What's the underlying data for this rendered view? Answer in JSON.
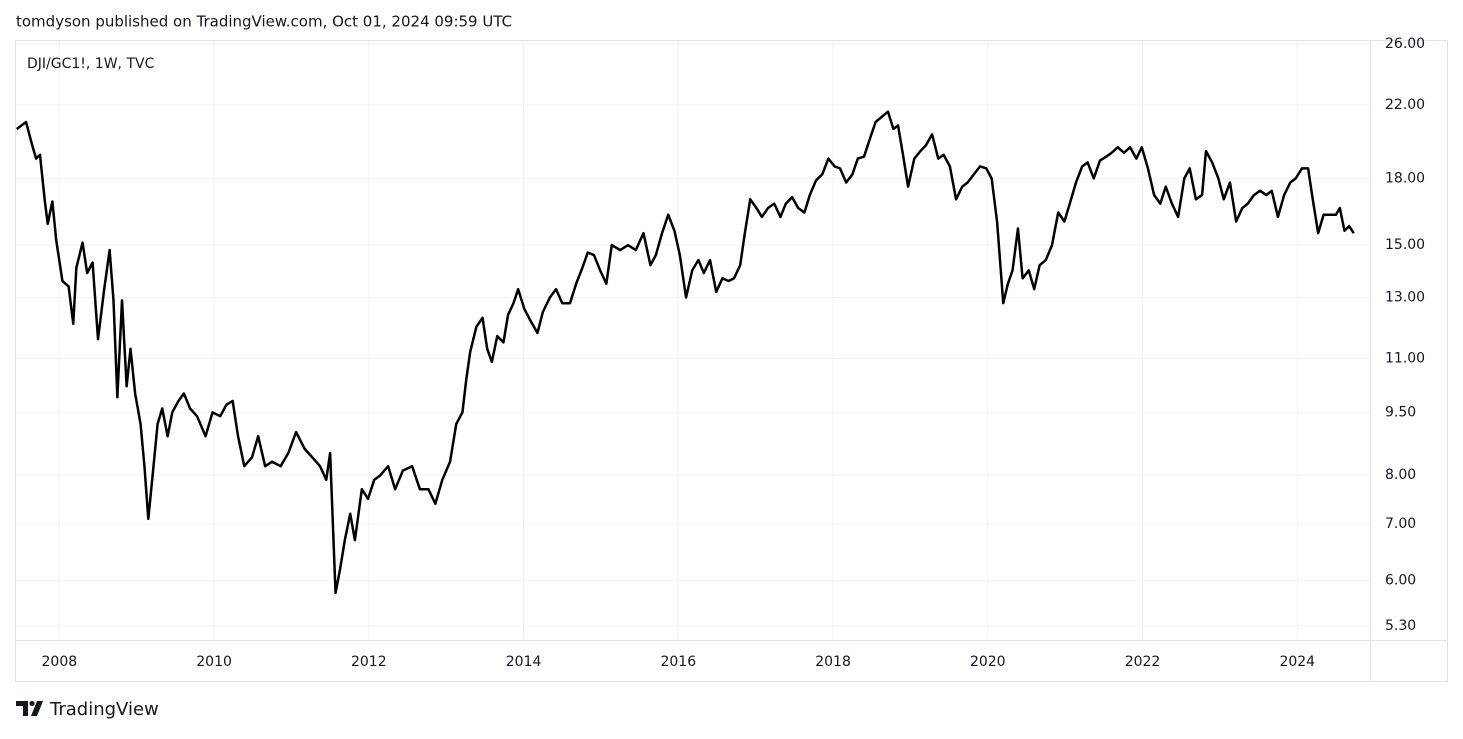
{
  "header": "tomdyson published on TradingView.com, Oct 01, 2024 09:59 UTC",
  "footer": "TradingView",
  "chart_data": {
    "type": "line",
    "title": "DJI/GC1!, 1W, TVC",
    "color": "#000000",
    "log_scale": true,
    "grid": true,
    "xlim": [
      2007.44,
      2024.94
    ],
    "xticks": [
      2008,
      2010,
      2012,
      2014,
      2016,
      2018,
      2020,
      2022,
      2024
    ],
    "ylim": [
      5.1,
      26.2
    ],
    "yticks": [
      {
        "value": 5.3,
        "label": "5.30"
      },
      {
        "value": 6,
        "label": "6.00"
      },
      {
        "value": 7,
        "label": "7.00"
      },
      {
        "value": 8,
        "label": "8.00"
      },
      {
        "value": 9.5,
        "label": "9.50"
      },
      {
        "value": 11,
        "label": "11.00"
      },
      {
        "value": 13,
        "label": "13.00"
      },
      {
        "value": 15,
        "label": "15.00"
      },
      {
        "value": 18,
        "label": "18.00"
      },
      {
        "value": 22,
        "label": "22.00"
      },
      {
        "value": 26,
        "label": "26.00"
      }
    ],
    "x": [
      2007.45,
      2007.57,
      2007.65,
      2007.7,
      2007.75,
      2007.81,
      2007.85,
      2007.91,
      2007.96,
      2008.04,
      2008.12,
      2008.18,
      2008.22,
      2008.3,
      2008.36,
      2008.43,
      2008.5,
      2008.58,
      2008.65,
      2008.7,
      2008.75,
      2008.81,
      2008.87,
      2008.92,
      2008.98,
      2009.05,
      2009.1,
      2009.15,
      2009.2,
      2009.27,
      2009.33,
      2009.4,
      2009.46,
      2009.54,
      2009.61,
      2009.69,
      2009.78,
      2009.89,
      2009.98,
      2010.08,
      2010.16,
      2010.24,
      2010.31,
      2010.39,
      2010.49,
      2010.57,
      2010.66,
      2010.75,
      2010.86,
      2010.96,
      2011.06,
      2011.17,
      2011.27,
      2011.37,
      2011.45,
      2011.5,
      2011.57,
      2011.63,
      2011.69,
      2011.76,
      2011.82,
      2011.91,
      2011.99,
      2012.07,
      2012.15,
      2012.25,
      2012.34,
      2012.44,
      2012.56,
      2012.66,
      2012.77,
      2012.86,
      2012.95,
      2013.05,
      2013.13,
      2013.21,
      2013.26,
      2013.31,
      2013.39,
      2013.47,
      2013.53,
      2013.59,
      2013.66,
      2013.74,
      2013.8,
      2013.87,
      2013.93,
      2014.01,
      2014.09,
      2014.18,
      2014.25,
      2014.34,
      2014.42,
      2014.5,
      2014.6,
      2014.68,
      2014.76,
      2014.83,
      2014.91,
      2014.99,
      2015.07,
      2015.14,
      2015.25,
      2015.35,
      2015.45,
      2015.55,
      2015.64,
      2015.71,
      2015.79,
      2015.87,
      2015.95,
      2016.02,
      2016.1,
      2016.18,
      2016.26,
      2016.33,
      2016.41,
      2016.49,
      2016.57,
      2016.65,
      2016.72,
      2016.8,
      2016.86,
      2016.93,
      2017.01,
      2017.08,
      2017.16,
      2017.24,
      2017.32,
      2017.39,
      2017.47,
      2017.55,
      2017.63,
      2017.7,
      2017.78,
      2017.86,
      2017.94,
      2018.02,
      2018.09,
      2018.17,
      2018.25,
      2018.32,
      2018.4,
      2018.48,
      2018.55,
      2018.63,
      2018.71,
      2018.78,
      2018.84,
      2018.9,
      2018.97,
      2019.05,
      2019.13,
      2019.2,
      2019.28,
      2019.36,
      2019.43,
      2019.51,
      2019.59,
      2019.67,
      2019.74,
      2019.82,
      2019.9,
      2019.98,
      2020.05,
      2020.12,
      2020.2,
      2020.26,
      2020.32,
      2020.39,
      2020.45,
      2020.53,
      2020.6,
      2020.67,
      2020.75,
      2020.83,
      2020.91,
      2020.99,
      2021.06,
      2021.14,
      2021.22,
      2021.29,
      2021.37,
      2021.45,
      2021.53,
      2021.6,
      2021.68,
      2021.76,
      2021.84,
      2021.92,
      2021.99,
      2022.07,
      2022.15,
      2022.23,
      2022.3,
      2022.38,
      2022.46,
      2022.54,
      2022.61,
      2022.69,
      2022.77,
      2022.82,
      2022.9,
      2022.98,
      2023.05,
      2023.13,
      2023.21,
      2023.29,
      2023.36,
      2023.44,
      2023.52,
      2023.6,
      2023.67,
      2023.75,
      2023.83,
      2023.91,
      2023.98,
      2024.06,
      2024.14,
      2024.2,
      2024.27,
      2024.34,
      2024.42,
      2024.5,
      2024.55,
      2024.61,
      2024.67,
      2024.73
    ],
    "values": [
      20.6,
      21.0,
      19.7,
      19.0,
      19.2,
      17.0,
      15.9,
      16.9,
      15.2,
      13.6,
      13.4,
      12.1,
      14.1,
      15.1,
      13.9,
      14.3,
      11.6,
      13.3,
      14.8,
      12.9,
      9.9,
      12.9,
      10.2,
      11.3,
      10.0,
      9.2,
      8.2,
      7.1,
      7.9,
      9.2,
      9.6,
      8.9,
      9.5,
      9.8,
      10.0,
      9.6,
      9.4,
      8.9,
      9.5,
      9.4,
      9.7,
      9.8,
      8.9,
      8.2,
      8.4,
      8.9,
      8.2,
      8.3,
      8.2,
      8.5,
      9.0,
      8.6,
      8.4,
      8.2,
      7.9,
      8.5,
      5.8,
      6.2,
      6.7,
      7.2,
      6.7,
      7.7,
      7.5,
      7.9,
      8.0,
      8.2,
      7.7,
      8.1,
      8.2,
      7.7,
      7.7,
      7.4,
      7.9,
      8.3,
      9.2,
      9.5,
      10.4,
      11.2,
      12.0,
      12.3,
      11.3,
      10.9,
      11.7,
      11.5,
      12.4,
      12.8,
      13.3,
      12.6,
      12.2,
      11.8,
      12.5,
      13.0,
      13.3,
      12.8,
      12.8,
      13.5,
      14.1,
      14.7,
      14.6,
      14.0,
      13.5,
      15.0,
      14.8,
      15.0,
      14.8,
      15.5,
      14.2,
      14.6,
      15.5,
      16.3,
      15.6,
      14.6,
      13.0,
      14.0,
      14.4,
      13.9,
      14.4,
      13.2,
      13.7,
      13.6,
      13.7,
      14.2,
      15.5,
      17.0,
      16.6,
      16.2,
      16.6,
      16.8,
      16.2,
      16.8,
      17.1,
      16.6,
      16.4,
      17.2,
      17.9,
      18.2,
      19.0,
      18.6,
      18.5,
      17.8,
      18.2,
      19.0,
      19.1,
      20.1,
      21.0,
      21.3,
      21.6,
      20.6,
      20.8,
      19.3,
      17.6,
      19.0,
      19.4,
      19.7,
      20.3,
      19.0,
      19.2,
      18.6,
      17.0,
      17.6,
      17.8,
      18.2,
      18.6,
      18.5,
      18.0,
      16.0,
      12.8,
      13.5,
      14.0,
      15.7,
      13.7,
      14.0,
      13.3,
      14.2,
      14.4,
      15.0,
      16.4,
      16.0,
      16.8,
      17.8,
      18.6,
      18.8,
      18.0,
      18.9,
      19.1,
      19.3,
      19.6,
      19.3,
      19.6,
      19.0,
      19.6,
      18.5,
      17.2,
      16.8,
      17.6,
      16.8,
      16.2,
      18.0,
      18.5,
      17.0,
      17.2,
      19.4,
      18.8,
      18.0,
      17.0,
      17.8,
      16.0,
      16.6,
      16.8,
      17.2,
      17.4,
      17.2,
      17.4,
      16.2,
      17.2,
      17.8,
      18.0,
      18.5,
      18.5,
      17.0,
      15.5,
      16.3,
      16.3,
      16.3,
      16.6,
      15.6,
      15.8,
      15.5
    ]
  }
}
